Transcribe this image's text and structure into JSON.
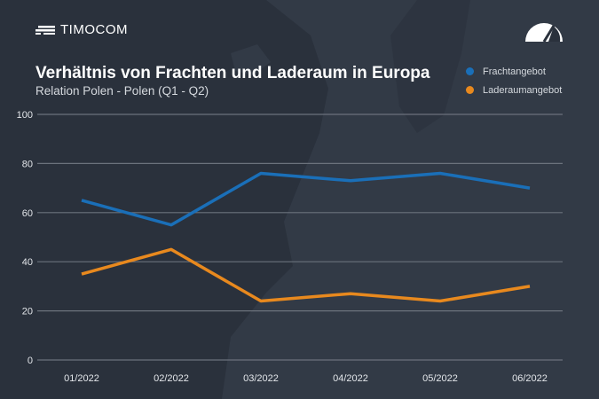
{
  "brand": {
    "name": "TIMOCOM",
    "logo_icon": "timocom-logo-icon",
    "gauge_icon": "gauge-icon"
  },
  "colors": {
    "background": "#2a313c",
    "grid": "#6b727c",
    "fracht": "#1a6fb8",
    "laderaum": "#e8891e"
  },
  "chart_data": {
    "type": "line",
    "title": "Verhältnis von Frachten und Laderaum in Europa",
    "subtitle": "Relation Polen - Polen (Q1 - Q2)",
    "categories": [
      "01/2022",
      "02/2022",
      "03/2022",
      "04/2022",
      "05/2022",
      "06/2022"
    ],
    "ylim": [
      0,
      100
    ],
    "yticks": [
      0,
      20,
      40,
      60,
      80,
      100
    ],
    "grid": true,
    "legend_position": "top-right",
    "series": [
      {
        "name": "Frachtangebot",
        "color": "#1a6fb8",
        "values": [
          65,
          55,
          76,
          73,
          76,
          70
        ]
      },
      {
        "name": "Laderaumangebot",
        "color": "#e8891e",
        "values": [
          35,
          45,
          24,
          27,
          24,
          30
        ]
      }
    ]
  }
}
